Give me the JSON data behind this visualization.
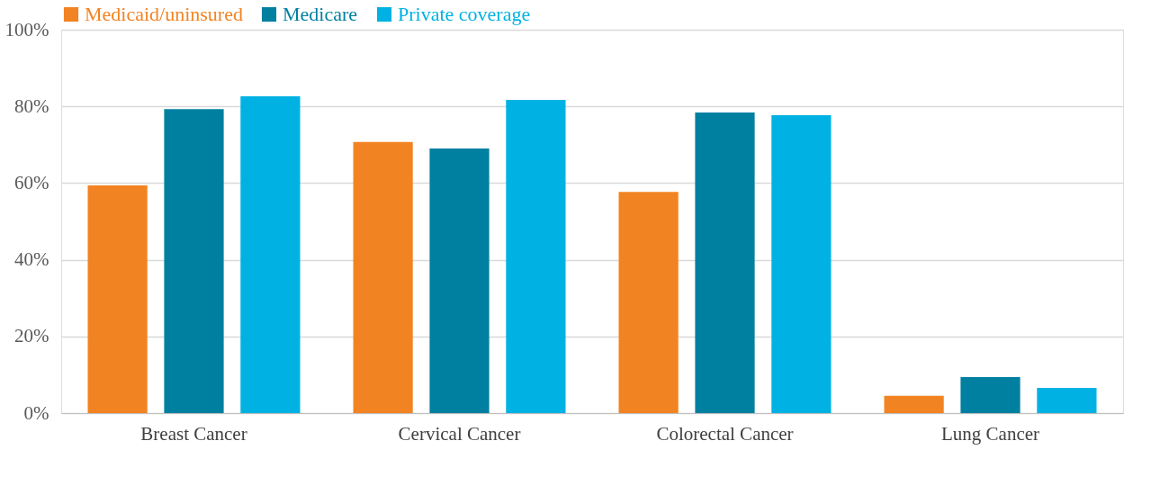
{
  "chart_data": {
    "type": "bar",
    "categories": [
      "Breast Cancer",
      "Cervical Cancer",
      "Colorectal Cancer",
      "Lung Cancer"
    ],
    "series": [
      {
        "name": "Medicaid/uninsured",
        "color": "#f28322",
        "values": [
          59.4,
          70.7,
          57.7,
          4.5
        ]
      },
      {
        "name": "Medicare",
        "color": "#0080a0",
        "values": [
          79.3,
          69.0,
          78.4,
          9.4
        ]
      },
      {
        "name": "Private coverage",
        "color": "#00b2e3",
        "values": [
          82.6,
          81.7,
          77.7,
          6.6
        ]
      }
    ],
    "ylim": [
      0,
      100
    ],
    "yticks": [
      {
        "value": 0,
        "label": "0%"
      },
      {
        "value": 20,
        "label": "20%"
      },
      {
        "value": 40,
        "label": "40%"
      },
      {
        "value": 60,
        "label": "60%"
      },
      {
        "value": 80,
        "label": "80%"
      },
      {
        "value": 100,
        "label": "100%"
      }
    ],
    "grid": "y",
    "legend": "top left"
  }
}
